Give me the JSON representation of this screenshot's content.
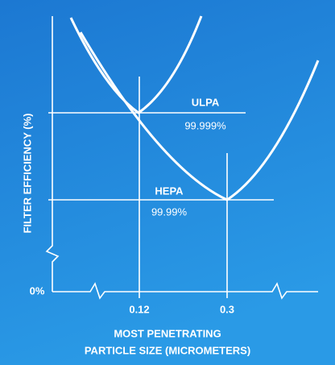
{
  "curves": [
    {
      "name": "ULPA",
      "efficiency": "99.999%"
    },
    {
      "name": "HEPA",
      "efficiency": "99.99%"
    }
  ],
  "y_axis": {
    "label": "FILTER EFFICIENCY (%)",
    "origin_label": "0%"
  },
  "x_axis": {
    "label_line1": "MOST PENETRATING",
    "label_line2": "PARTICLE SIZE (MICROMETERS)",
    "ticks": [
      "0.12",
      "0.3"
    ]
  }
}
